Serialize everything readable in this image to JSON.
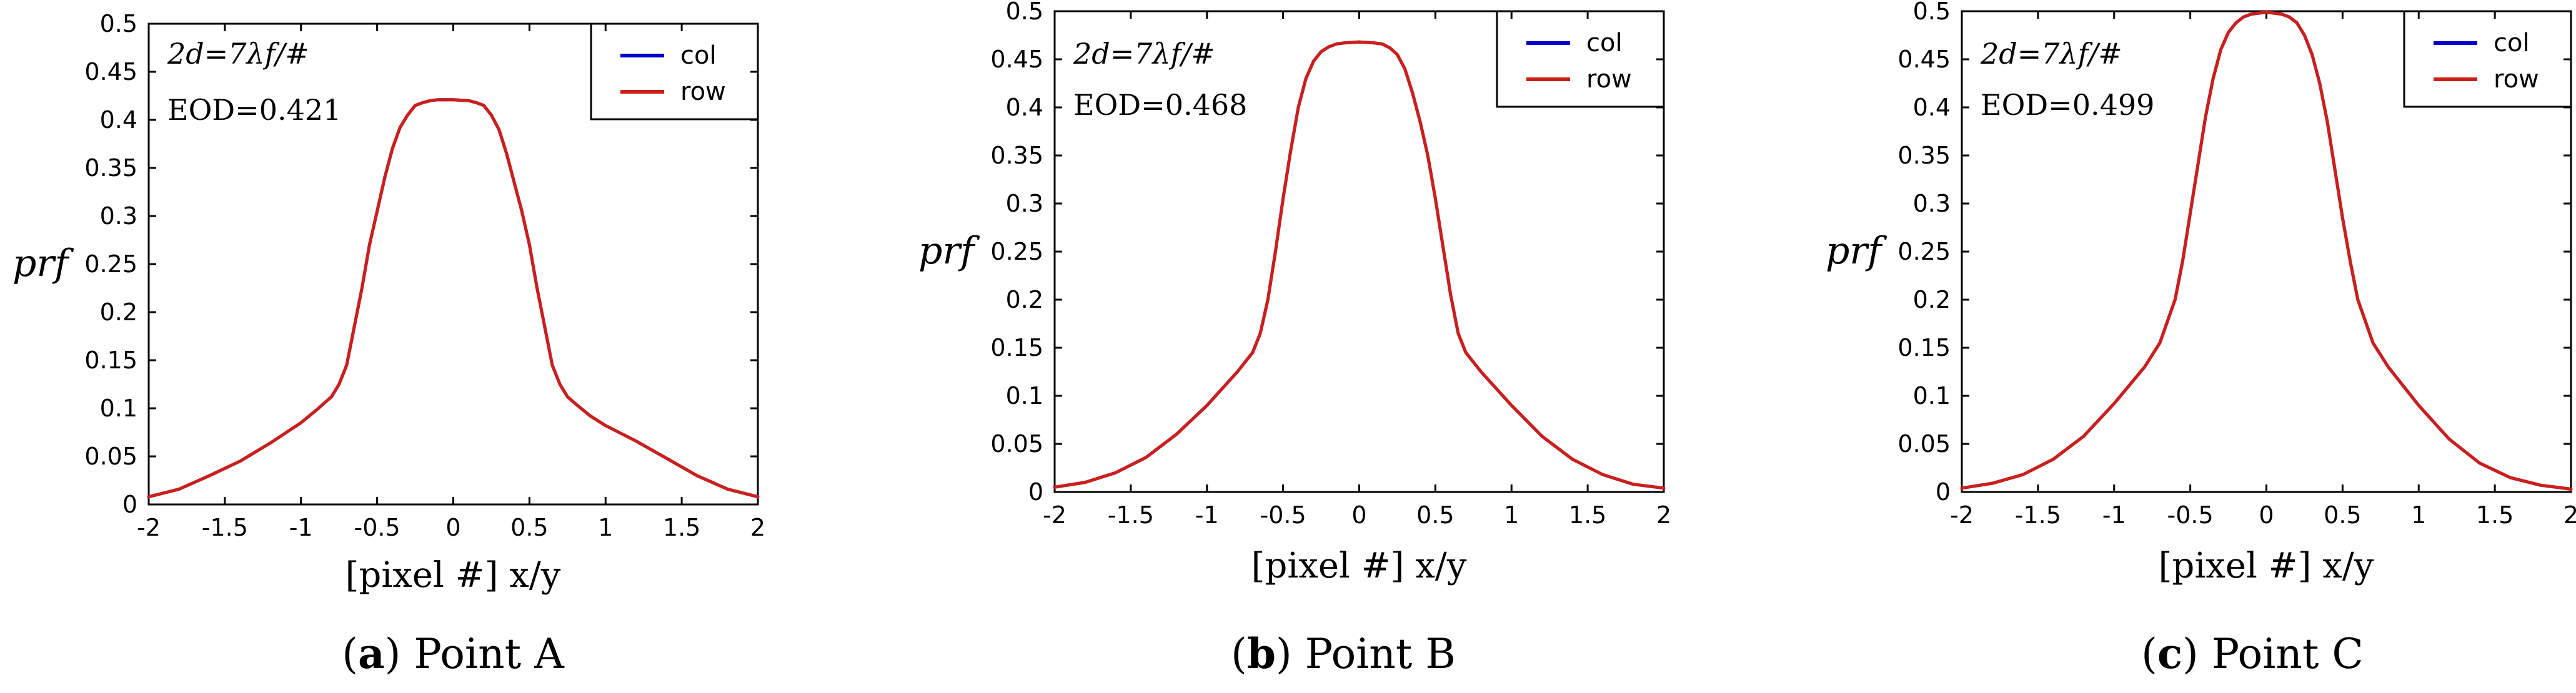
{
  "chart_data": [
    {
      "type": "line",
      "caption_letter": "a",
      "caption_text": "Point A",
      "annotation_formula": "2d=7λf/#",
      "annotation_eod": "EOD=0.421",
      "xlabel": "[pixel #] x/y",
      "ylabel": "prf",
      "xlim": [
        -2,
        2
      ],
      "ylim": [
        0,
        0.5
      ],
      "xticks": [
        "-2",
        "-1.5",
        "-1",
        "-0.5",
        "0",
        "0.5",
        "1",
        "1.5",
        "2"
      ],
      "yticks": [
        "0",
        "0.05",
        "0.1",
        "0.15",
        "0.2",
        "0.25",
        "0.3",
        "0.35",
        "0.4",
        "0.45",
        "0.5"
      ],
      "legend": [
        "col",
        "row"
      ],
      "legend_position": "top-right",
      "x": [
        -2.0,
        -1.8,
        -1.6,
        -1.4,
        -1.2,
        -1.0,
        -0.9,
        -0.8,
        -0.75,
        -0.7,
        -0.65,
        -0.6,
        -0.55,
        -0.5,
        -0.45,
        -0.4,
        -0.35,
        -0.3,
        -0.25,
        -0.2,
        -0.15,
        -0.1,
        0.0,
        0.1,
        0.15,
        0.2,
        0.25,
        0.3,
        0.35,
        0.4,
        0.45,
        0.5,
        0.55,
        0.6,
        0.65,
        0.7,
        0.75,
        0.8,
        0.9,
        1.0,
        1.2,
        1.4,
        1.6,
        1.8,
        2.0
      ],
      "series": [
        {
          "name": "col",
          "color": "#0000cc",
          "values": [
            0.008,
            0.016,
            0.03,
            0.045,
            0.064,
            0.085,
            0.098,
            0.112,
            0.125,
            0.145,
            0.185,
            0.225,
            0.27,
            0.305,
            0.34,
            0.37,
            0.392,
            0.405,
            0.415,
            0.418,
            0.42,
            0.421,
            0.421,
            0.42,
            0.418,
            0.415,
            0.405,
            0.39,
            0.365,
            0.335,
            0.305,
            0.27,
            0.225,
            0.185,
            0.145,
            0.125,
            0.112,
            0.105,
            0.092,
            0.082,
            0.066,
            0.048,
            0.03,
            0.016,
            0.008
          ]
        },
        {
          "name": "row",
          "color": "#cc1f1a",
          "values": [
            0.008,
            0.016,
            0.03,
            0.045,
            0.064,
            0.085,
            0.098,
            0.112,
            0.125,
            0.145,
            0.185,
            0.225,
            0.27,
            0.305,
            0.34,
            0.37,
            0.392,
            0.405,
            0.415,
            0.418,
            0.42,
            0.421,
            0.421,
            0.42,
            0.418,
            0.415,
            0.405,
            0.39,
            0.365,
            0.335,
            0.305,
            0.27,
            0.225,
            0.185,
            0.145,
            0.125,
            0.112,
            0.105,
            0.092,
            0.082,
            0.066,
            0.048,
            0.03,
            0.016,
            0.008
          ]
        }
      ]
    },
    {
      "type": "line",
      "caption_letter": "b",
      "caption_text": "Point B",
      "annotation_formula": "2d=7λf/#",
      "annotation_eod": "EOD=0.468",
      "xlabel": "[pixel #] x/y",
      "ylabel": "prf",
      "xlim": [
        -2,
        2
      ],
      "ylim": [
        0,
        0.5
      ],
      "xticks": [
        "-2",
        "-1.5",
        "-1",
        "-0.5",
        "0",
        "0.5",
        "1",
        "1.5",
        "2"
      ],
      "yticks": [
        "0",
        "0.05",
        "0.1",
        "0.15",
        "0.2",
        "0.25",
        "0.3",
        "0.35",
        "0.4",
        "0.45",
        "0.5"
      ],
      "legend": [
        "col",
        "row"
      ],
      "legend_position": "top-right",
      "x": [
        -2.0,
        -1.8,
        -1.6,
        -1.4,
        -1.2,
        -1.0,
        -0.8,
        -0.7,
        -0.65,
        -0.6,
        -0.55,
        -0.5,
        -0.45,
        -0.4,
        -0.35,
        -0.3,
        -0.25,
        -0.2,
        -0.15,
        -0.1,
        0.0,
        0.1,
        0.15,
        0.2,
        0.25,
        0.3,
        0.35,
        0.4,
        0.45,
        0.5,
        0.55,
        0.6,
        0.65,
        0.7,
        0.8,
        1.0,
        1.2,
        1.4,
        1.6,
        1.8,
        2.0
      ],
      "series": [
        {
          "name": "col",
          "color": "#0000cc",
          "values": [
            0.005,
            0.01,
            0.02,
            0.036,
            0.06,
            0.09,
            0.125,
            0.145,
            0.165,
            0.2,
            0.25,
            0.305,
            0.355,
            0.4,
            0.43,
            0.448,
            0.458,
            0.463,
            0.466,
            0.467,
            0.468,
            0.467,
            0.466,
            0.462,
            0.455,
            0.44,
            0.415,
            0.385,
            0.35,
            0.305,
            0.255,
            0.205,
            0.165,
            0.145,
            0.125,
            0.09,
            0.058,
            0.034,
            0.018,
            0.008,
            0.004
          ]
        },
        {
          "name": "row",
          "color": "#cc1f1a",
          "values": [
            0.005,
            0.01,
            0.02,
            0.036,
            0.06,
            0.09,
            0.125,
            0.145,
            0.165,
            0.2,
            0.25,
            0.305,
            0.355,
            0.4,
            0.43,
            0.448,
            0.458,
            0.463,
            0.466,
            0.467,
            0.468,
            0.467,
            0.466,
            0.462,
            0.455,
            0.44,
            0.415,
            0.385,
            0.35,
            0.305,
            0.255,
            0.205,
            0.165,
            0.145,
            0.125,
            0.09,
            0.058,
            0.034,
            0.018,
            0.008,
            0.004
          ]
        }
      ]
    },
    {
      "type": "line",
      "caption_letter": "c",
      "caption_text": "Point C",
      "annotation_formula": "2d=7λf/#",
      "annotation_eod": "EOD=0.499",
      "xlabel": "[pixel #] x/y",
      "ylabel": "prf",
      "xlim": [
        -2,
        2
      ],
      "ylim": [
        0,
        0.5
      ],
      "xticks": [
        "-2",
        "-1.5",
        "-1",
        "-0.5",
        "0",
        "0.5",
        "1",
        "1.5",
        "2"
      ],
      "yticks": [
        "0",
        "0.05",
        "0.1",
        "0.15",
        "0.2",
        "0.25",
        "0.3",
        "0.35",
        "0.4",
        "0.45",
        "0.5"
      ],
      "legend": [
        "col",
        "row"
      ],
      "legend_position": "top-right",
      "x": [
        -2.0,
        -1.8,
        -1.6,
        -1.4,
        -1.2,
        -1.0,
        -0.8,
        -0.7,
        -0.6,
        -0.55,
        -0.5,
        -0.45,
        -0.4,
        -0.35,
        -0.3,
        -0.25,
        -0.2,
        -0.15,
        -0.1,
        0.0,
        0.1,
        0.15,
        0.2,
        0.25,
        0.3,
        0.35,
        0.4,
        0.45,
        0.5,
        0.55,
        0.6,
        0.7,
        0.8,
        1.0,
        1.2,
        1.4,
        1.6,
        1.8,
        2.0
      ],
      "series": [
        {
          "name": "col",
          "color": "#0000cc",
          "values": [
            0.004,
            0.009,
            0.018,
            0.034,
            0.058,
            0.092,
            0.13,
            0.155,
            0.2,
            0.24,
            0.29,
            0.34,
            0.39,
            0.43,
            0.46,
            0.478,
            0.488,
            0.494,
            0.497,
            0.499,
            0.497,
            0.494,
            0.488,
            0.475,
            0.455,
            0.425,
            0.385,
            0.335,
            0.285,
            0.24,
            0.2,
            0.155,
            0.13,
            0.09,
            0.055,
            0.03,
            0.015,
            0.007,
            0.003
          ]
        },
        {
          "name": "row",
          "color": "#cc1f1a",
          "values": [
            0.004,
            0.009,
            0.018,
            0.034,
            0.058,
            0.092,
            0.13,
            0.155,
            0.2,
            0.24,
            0.29,
            0.34,
            0.39,
            0.43,
            0.46,
            0.478,
            0.488,
            0.494,
            0.497,
            0.499,
            0.497,
            0.494,
            0.488,
            0.475,
            0.455,
            0.425,
            0.385,
            0.335,
            0.285,
            0.24,
            0.2,
            0.155,
            0.13,
            0.09,
            0.055,
            0.03,
            0.015,
            0.007,
            0.003
          ]
        }
      ]
    }
  ]
}
